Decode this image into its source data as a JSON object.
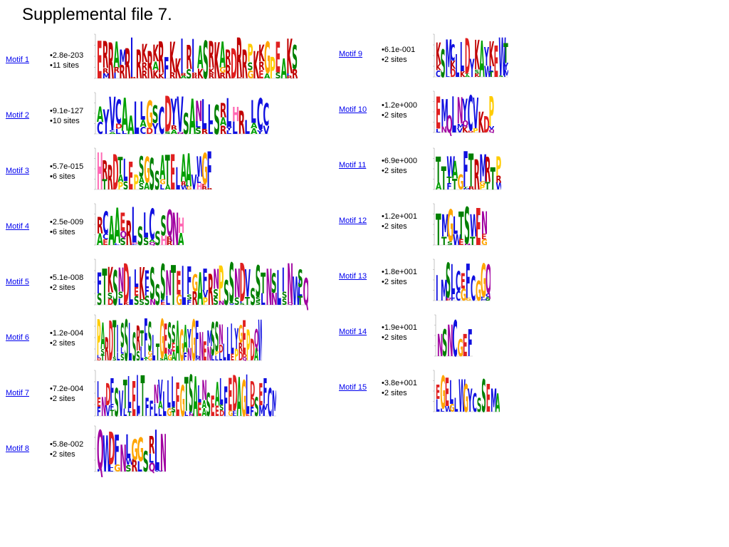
{
  "title": "Supplemental file 7.",
  "colors": {
    "link": "#0000ee",
    "A": "#00a000",
    "C": "#1010e0",
    "D": "#e02020",
    "E": "#e02020",
    "G": "#ffa500",
    "H": "#ff69b4",
    "K": "#c00000",
    "R": "#c00000",
    "N": "#a000a0",
    "Q": "#a000a0",
    "S": "#008000",
    "T": "#008000",
    "F": "#1010e0",
    "W": "#1010e0",
    "Y": "#1010e0",
    "I": "#1010e0",
    "L": "#1010e0",
    "M": "#1010e0",
    "V": "#1010e0",
    "P": "#ffcc00"
  },
  "motifs_left": [
    {
      "label": "Motif 1",
      "evalue": "•2.8e-203",
      "sites": "•11 sites",
      "logo": "ERRAMRIRKRKRFKKIRIASRKARDRRPKKGPEAKS"
    },
    {
      "label": "Motif 2",
      "evalue": "•9.1e-127",
      "sites": "•10 sites",
      "logo": "AYVCAALLGSCDYVSANLLSRLHRLLCC"
    },
    {
      "label": "Motif 3",
      "evalue": "•5.7e-015",
      "sites": "•6 sites",
      "logo": "HRRDTLEPSGSSATELAAVWGF"
    },
    {
      "label": "Motif 4",
      "evalue": "•2.5e-009",
      "sites": "•6 sites",
      "logo": "RCAAERLSLCSSQNH"
    },
    {
      "label": "Motif 5",
      "evalue": "•5.1e-008",
      "sites": "•2 sites",
      "logo": "FTKSNDLLKFSSSNTELFGAFRNPSSNDVSSTNSLINWSQ"
    },
    {
      "label": "Motif 6",
      "evalue": "•1.2e-004",
      "sites": "•2 sites",
      "logo": "PARDTISSLSRTFSLTGESSAGAYGFNEMSSNLLLYGEPDQW"
    },
    {
      "label": "Motif 7",
      "evalue": "•7.2e-004",
      "sites": "•2 sites",
      "logo": "INDFSVTLELTFFNVLLLEGTSALNSEALFEDAGLDSEFCM"
    },
    {
      "label": "Motif 8",
      "evalue": "•5.8e-002",
      "sites": "•2 sites",
      "logo": "QWDFNLGGSRLN"
    }
  ],
  "motifs_right": [
    {
      "label": "Motif 9",
      "evalue": "•6.1e-001",
      "sites": "•2 sites",
      "logo": "KSMCLLDYKAYKEWT"
    },
    {
      "label": "Motif 10",
      "evalue": "•1.2e+000",
      "sites": "•2 sites",
      "logo": "EMQLNYCVKDP"
    },
    {
      "label": "Motif 11",
      "evalue": "•6.9e+000",
      "sites": "•2 sites",
      "logo": "TTWAGFTRMRTP"
    },
    {
      "label": "Motif 12",
      "evalue": "•1.2e+001",
      "sites": "•2 sites",
      "logo": "TMGLTSWEN"
    },
    {
      "label": "Motif 13",
      "evalue": "•1.8e+001",
      "sites": "•2 sites",
      "logo": "IMSLCEFCGGQ"
    },
    {
      "label": "Motif 14",
      "evalue": "•1.9e+001",
      "sites": "•2 sites",
      "logo": "NSNCGEF"
    },
    {
      "label": "Motif 15",
      "evalue": "•3.8e+001",
      "sites": "•2 sites",
      "logo": "EGELLWGYCSSEMA"
    }
  ]
}
